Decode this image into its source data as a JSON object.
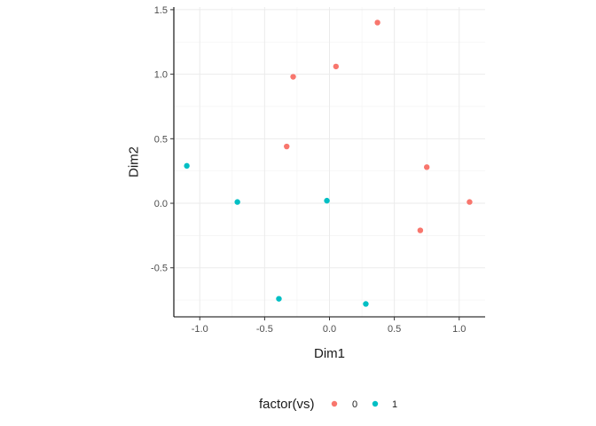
{
  "chart_data": {
    "type": "scatter",
    "xlabel": "Dim1",
    "ylabel": "Dim2",
    "xlim": [
      -1.2,
      1.2
    ],
    "ylim": [
      -0.88,
      1.52
    ],
    "x_ticks": [
      -1.0,
      -0.5,
      0.0,
      0.5,
      1.0
    ],
    "x_tick_labels": [
      "-1.0",
      "-0.5",
      "0.0",
      "0.5",
      "1.0"
    ],
    "y_ticks": [
      -0.5,
      0.0,
      0.5,
      1.0,
      1.5
    ],
    "y_tick_labels": [
      "-0.5",
      "0.0",
      "0.5",
      "1.0",
      "1.5"
    ],
    "grid": true,
    "legend": {
      "title": "factor(vs)",
      "position": "bottom",
      "entries": [
        {
          "label": "0",
          "color": "#F8766D"
        },
        {
          "label": "1",
          "color": "#00BFC4"
        }
      ]
    },
    "series": [
      {
        "name": "0",
        "color": "#F8766D",
        "points": [
          {
            "x": 0.37,
            "y": 1.4
          },
          {
            "x": 0.05,
            "y": 1.06
          },
          {
            "x": -0.28,
            "y": 0.98
          },
          {
            "x": -0.33,
            "y": 0.44
          },
          {
            "x": 0.75,
            "y": 0.28
          },
          {
            "x": 1.08,
            "y": 0.01
          },
          {
            "x": 0.7,
            "y": -0.21
          }
        ]
      },
      {
        "name": "1",
        "color": "#00BFC4",
        "points": [
          {
            "x": -1.1,
            "y": 0.29
          },
          {
            "x": -0.71,
            "y": 0.01
          },
          {
            "x": -0.02,
            "y": 0.02
          },
          {
            "x": -0.39,
            "y": -0.74
          },
          {
            "x": 0.28,
            "y": -0.78
          }
        ]
      }
    ]
  }
}
